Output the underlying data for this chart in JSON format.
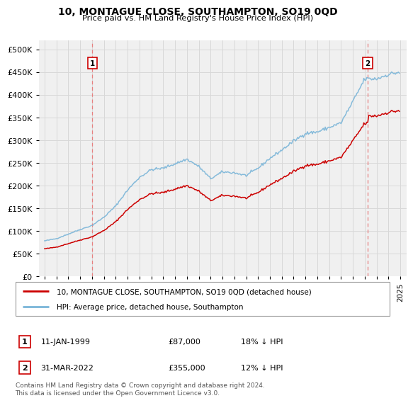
{
  "title": "10, MONTAGUE CLOSE, SOUTHAMPTON, SO19 0QD",
  "subtitle": "Price paid vs. HM Land Registry's House Price Index (HPI)",
  "sale1_date": "11-JAN-1999",
  "sale1_price": 87000,
  "sale1_label": "18% ↓ HPI",
  "sale1_x": 1999.03,
  "sale2_date": "31-MAR-2022",
  "sale2_price": 355000,
  "sale2_label": "12% ↓ HPI",
  "sale2_x": 2022.25,
  "hpi_color": "#7ab5d8",
  "price_color": "#cc0000",
  "vline_color": "#e88080",
  "background_color": "#f0f0f0",
  "grid_color": "#d8d8d8",
  "ylim": [
    0,
    520000
  ],
  "yticks": [
    0,
    50000,
    100000,
    150000,
    200000,
    250000,
    300000,
    350000,
    400000,
    450000,
    500000
  ],
  "xlim": [
    1994.5,
    2025.5
  ],
  "xticks": [
    1995,
    1996,
    1997,
    1998,
    1999,
    2000,
    2001,
    2002,
    2003,
    2004,
    2005,
    2006,
    2007,
    2008,
    2009,
    2010,
    2011,
    2012,
    2013,
    2014,
    2015,
    2016,
    2017,
    2018,
    2019,
    2020,
    2021,
    2022,
    2023,
    2024,
    2025
  ],
  "legend_label_price": "10, MONTAGUE CLOSE, SOUTHAMPTON, SO19 0QD (detached house)",
  "legend_label_hpi": "HPI: Average price, detached house, Southampton",
  "footnote": "Contains HM Land Registry data © Crown copyright and database right 2024.\nThis data is licensed under the Open Government Licence v3.0."
}
